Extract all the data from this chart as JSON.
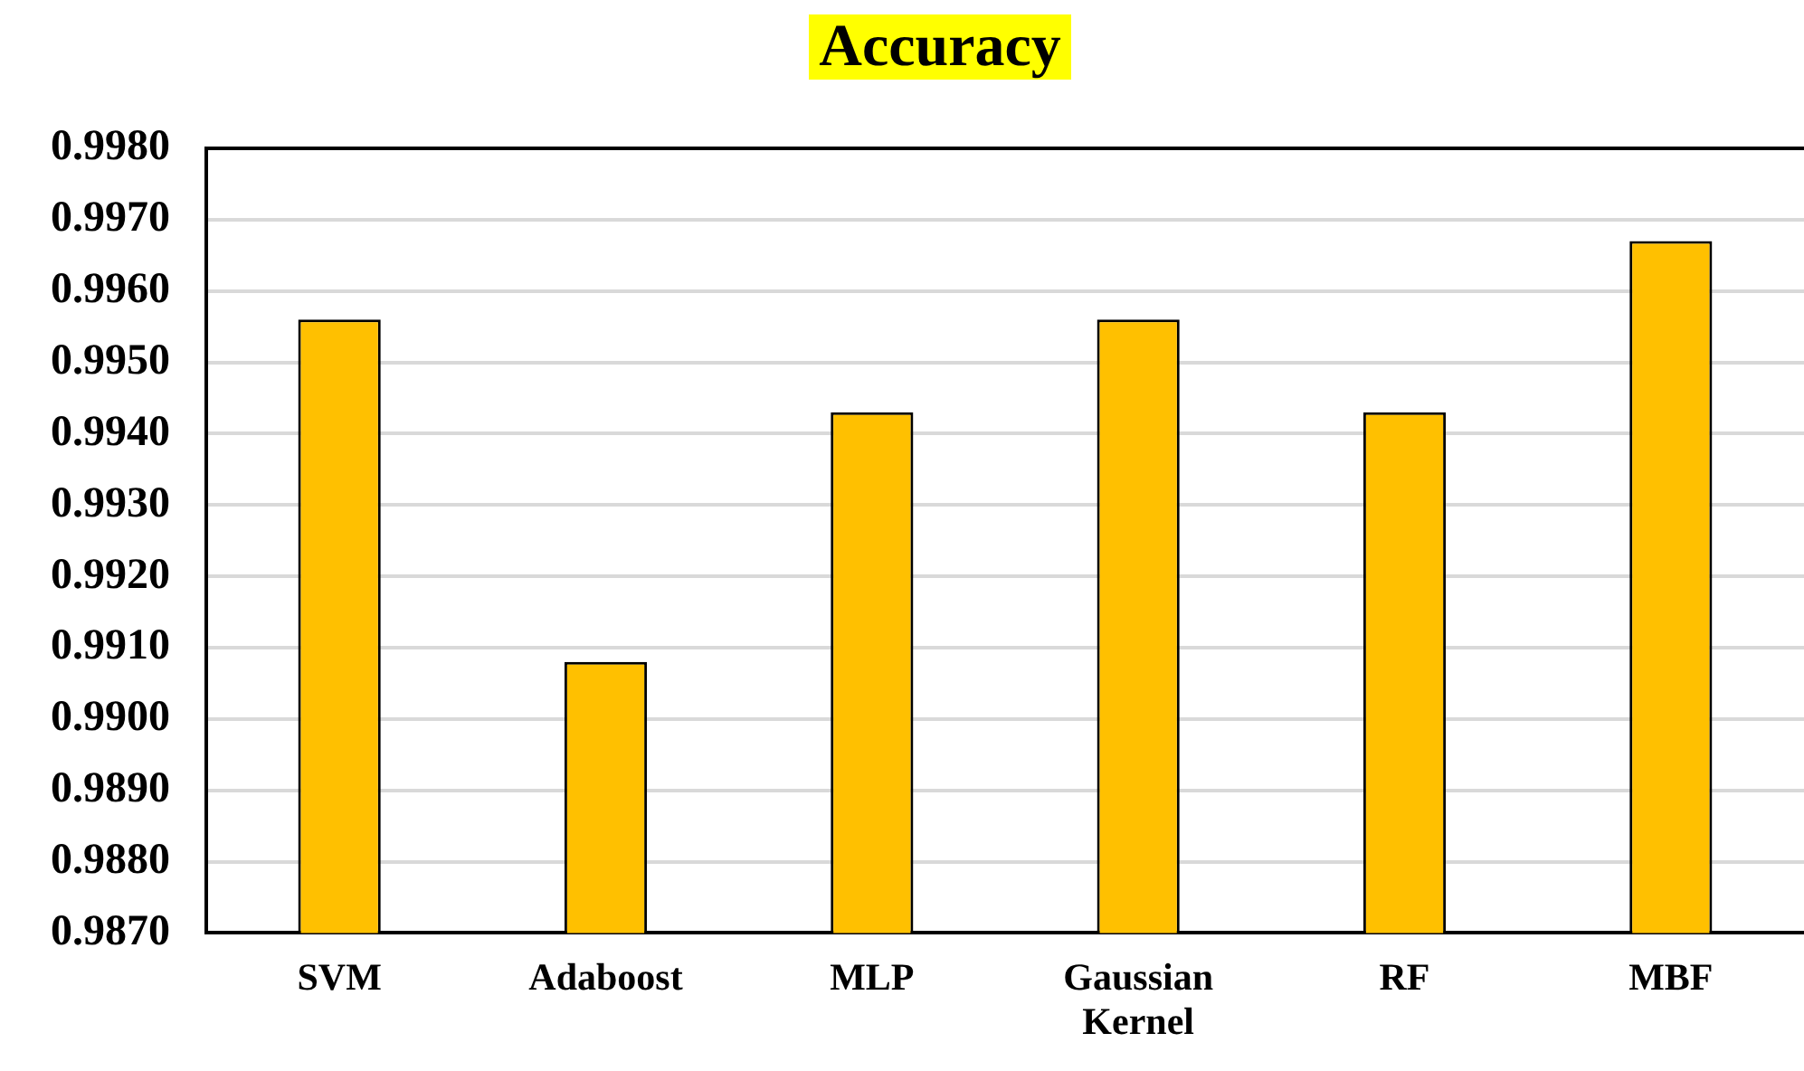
{
  "chart_data": {
    "type": "bar",
    "title": "Accuracy",
    "categories": [
      "SVM",
      "Adaboost",
      "MLP",
      "Gaussian Kernel",
      "RF",
      "MBF"
    ],
    "values": [
      0.9956,
      0.9908,
      0.9943,
      0.9956,
      0.9943,
      0.9967
    ],
    "color": "#ffc000",
    "ylim": [
      0.987,
      0.998
    ],
    "yticks": [
      {
        "value": 0.987,
        "label": "0.9870"
      },
      {
        "value": 0.988,
        "label": "0.9880"
      },
      {
        "value": 0.989,
        "label": "0.9890"
      },
      {
        "value": 0.99,
        "label": "0.9900"
      },
      {
        "value": 0.991,
        "label": "0.9910"
      },
      {
        "value": 0.992,
        "label": "0.9920"
      },
      {
        "value": 0.993,
        "label": "0.9930"
      },
      {
        "value": 0.994,
        "label": "0.9940"
      },
      {
        "value": 0.995,
        "label": "0.9950"
      },
      {
        "value": 0.996,
        "label": "0.9960"
      },
      {
        "value": 0.997,
        "label": "0.9970"
      },
      {
        "value": 0.998,
        "label": "0.9980"
      }
    ],
    "grid": "y"
  }
}
